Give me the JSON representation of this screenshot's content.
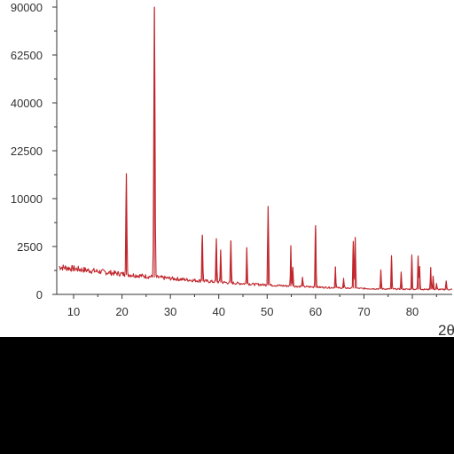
{
  "chart_data": {
    "type": "line",
    "title": "",
    "xlabel": "2θ",
    "ylabel": "",
    "xlim": [
      7,
      90
    ],
    "ylim": [
      0,
      90000
    ],
    "y_scale": "nonlinear (tick spacing uneven)",
    "x_ticks": [
      10,
      20,
      30,
      40,
      50,
      60,
      70,
      80
    ],
    "y_ticks": [
      0,
      2500,
      10000,
      22500,
      40000,
      62500,
      90000
    ],
    "grid": false,
    "line_color": "#c0272d",
    "background": {
      "x_start": 7,
      "x_end": 90,
      "y_start": 1400,
      "y_end": 250
    },
    "peaks": [
      {
        "x": 20.9,
        "y": 15500
      },
      {
        "x": 26.7,
        "y": 90000
      },
      {
        "x": 36.6,
        "y": 3600
      },
      {
        "x": 39.5,
        "y": 3100
      },
      {
        "x": 40.4,
        "y": 1700
      },
      {
        "x": 42.5,
        "y": 2800
      },
      {
        "x": 45.8,
        "y": 1900
      },
      {
        "x": 50.2,
        "y": 8300
      },
      {
        "x": 54.9,
        "y": 2200
      },
      {
        "x": 55.3,
        "y": 1000
      },
      {
        "x": 57.3,
        "y": 500
      },
      {
        "x": 60.0,
        "y": 5400
      },
      {
        "x": 64.1,
        "y": 1100
      },
      {
        "x": 65.8,
        "y": 500
      },
      {
        "x": 67.8,
        "y": 3000
      },
      {
        "x": 68.2,
        "y": 3600
      },
      {
        "x": 73.5,
        "y": 1000
      },
      {
        "x": 75.7,
        "y": 1750
      },
      {
        "x": 77.7,
        "y": 900
      },
      {
        "x": 79.9,
        "y": 1800
      },
      {
        "x": 81.2,
        "y": 1750
      },
      {
        "x": 81.5,
        "y": 1200
      },
      {
        "x": 83.8,
        "y": 1150
      },
      {
        "x": 84.3,
        "y": 700
      },
      {
        "x": 85.0,
        "y": 300
      },
      {
        "x": 87.0,
        "y": 450
      },
      {
        "x": 88.5,
        "y": 300
      }
    ]
  }
}
